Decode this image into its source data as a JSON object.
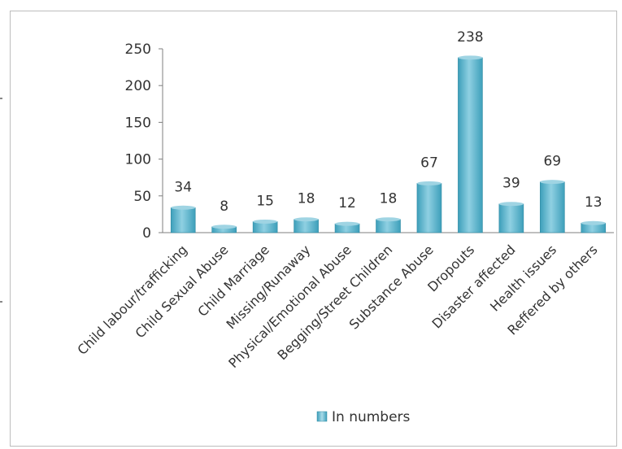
{
  "chart_data": {
    "type": "bar",
    "categories": [
      "Child labour/trafficking",
      "Child Sexual Abuse",
      "Child Marriage",
      "Missing/Runaway",
      "Physical/Emotional Abuse",
      "Begging/Street Children",
      "Substance Abuse",
      "Dropouts",
      "Disaster affected",
      "Health issues",
      "Reffered by others"
    ],
    "series": [
      {
        "name": "In numbers",
        "values": [
          34,
          8,
          15,
          18,
          12,
          18,
          67,
          238,
          39,
          69,
          13
        ]
      }
    ],
    "yticks": [
      "0",
      "50",
      "100",
      "150",
      "200",
      "250"
    ],
    "ylim": [
      0,
      250
    ],
    "legend_position": "bottom",
    "colors": {
      "bar": "#4bacc6",
      "bar_light": "#9fd4e3",
      "bar_dark": "#2f8aa3",
      "axis": "#7f7f7f"
    }
  }
}
